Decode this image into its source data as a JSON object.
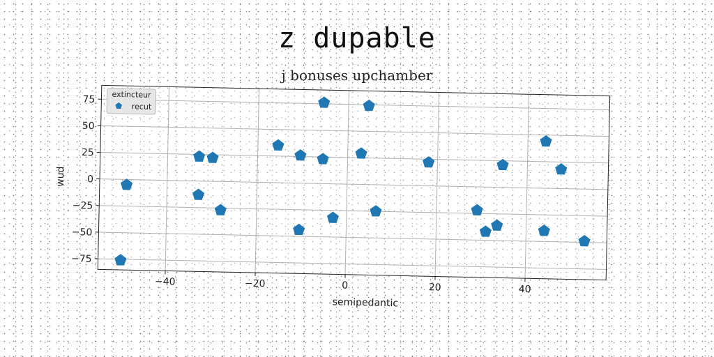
{
  "header": {
    "title": "z dupable",
    "subtitle": "j bonuses upchamber"
  },
  "chart_data": {
    "type": "scatter",
    "title": "z dupable",
    "subtitle": "j bonuses upchamber",
    "xlabel": "semipedantic",
    "ylabel": "wud",
    "xlim": [
      -55,
      58
    ],
    "ylim": [
      -85,
      88
    ],
    "xticks": [
      -40,
      -20,
      0,
      20,
      40
    ],
    "yticks": [
      -75,
      -50,
      -25,
      0,
      25,
      50,
      75
    ],
    "xtick_labels": [
      "−40",
      "−20",
      "0",
      "20",
      "40"
    ],
    "ytick_labels": [
      "−75",
      "−50",
      "−25",
      "0",
      "25",
      "50",
      "75"
    ],
    "grid": true,
    "legend": {
      "title": "extincteur",
      "placement": "top-left"
    },
    "series": [
      {
        "name": "recut",
        "color": "#1f77b4",
        "marker": "pentagon",
        "x": [
          -50,
          -49,
          -33,
          -30,
          -33,
          -28,
          -15.5,
          -10.5,
          -10.5,
          -5.5,
          -5.5,
          -3,
          3,
          4.5,
          6.5,
          18,
          29,
          31,
          33.5,
          34.5,
          44,
          44,
          47.5,
          53
        ],
        "y": [
          -76,
          -5,
          23,
          22,
          -13,
          -27,
          35,
          26,
          -44,
          23,
          76,
          -32,
          29,
          74,
          -25,
          22,
          -22,
          -42,
          -36,
          21,
          44,
          -40,
          18,
          -49
        ]
      }
    ]
  }
}
